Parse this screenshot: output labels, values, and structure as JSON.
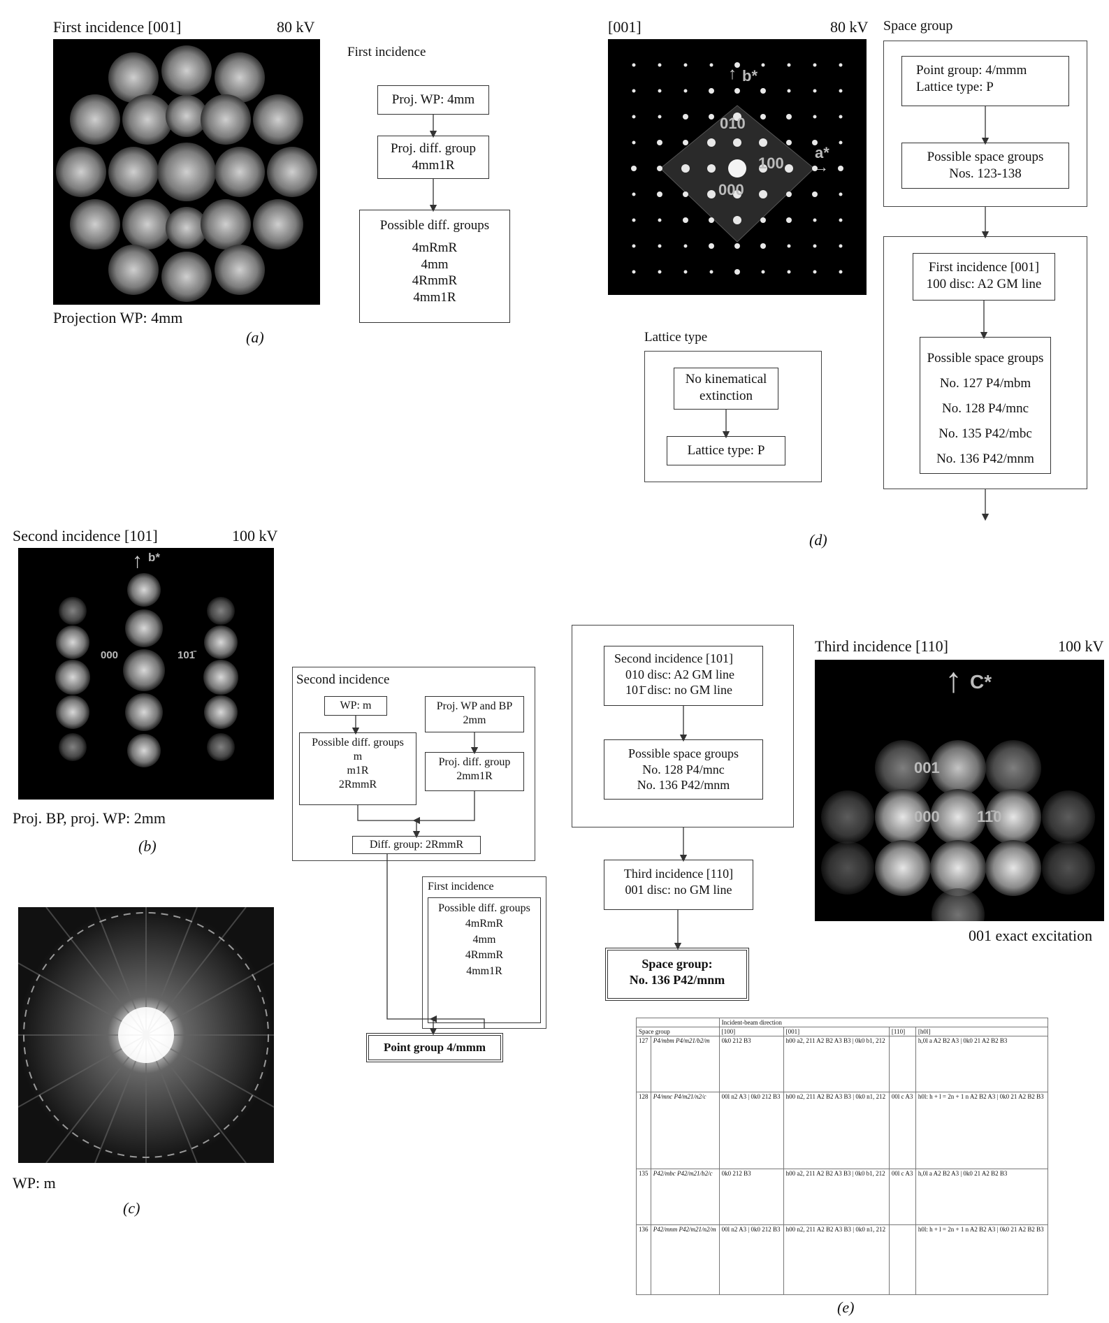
{
  "panel_a": {
    "title": "First incidence [001]",
    "voltage": "80 kV",
    "caption": "Projection WP: 4mm",
    "label": "(a)",
    "flow_title": "First incidence",
    "box1": "Proj. WP: 4mm",
    "box2_line1": "Proj. diff. group",
    "box2_line2": "4mm1R",
    "box3_title": "Possible diff. groups",
    "box3_items": [
      "4mRmR",
      "4mm",
      "4RmmR",
      "4mm1R"
    ]
  },
  "panel_b": {
    "title": "Second incidence [101]",
    "voltage": "100 kV",
    "caption": "Proj. BP, proj. WP: 2mm",
    "label": "(b)",
    "spot_b": "b*",
    "spot_000": "000",
    "spot_101": "101̄",
    "flow_title": "Second incidence",
    "wp_box": "WP: m",
    "possible_title": "Possible diff. groups",
    "possible_items": [
      "m",
      "m1R",
      "2RmmR"
    ],
    "proj_box_line1": "Proj. WP and BP",
    "proj_box_line2": "2mm",
    "projdiff_line1": "Proj. diff. group",
    "projdiff_line2": "2mm1R",
    "diffgroup": "Diff. group: 2RmmR",
    "first_title": "First incidence",
    "first_possible_title": "Possible diff. groups",
    "first_items": [
      "4mRmR",
      "4mm",
      "4RmmR",
      "4mm1R"
    ],
    "point_group": "Point group 4/mmm"
  },
  "panel_c": {
    "caption": "WP: m",
    "label": "(c)"
  },
  "panel_d": {
    "title": "[001]",
    "voltage": "80 kV",
    "spot_b": "b*",
    "spot_a": "a*",
    "spot_010": "010",
    "spot_100": "100",
    "spot_000": "000",
    "space_group_title": "Space group",
    "pg_line1": "Point group: 4/mmm",
    "pg_line2": "Lattice type: P",
    "psg_line1": "Possible space groups",
    "psg_line2": "Nos. 123-138",
    "fi_line1": "First incidence [001]",
    "fi_line2": "100 disc: A2 GM line",
    "psg2_title": "Possible space groups",
    "psg2_items": [
      "No. 127 P4/mbm",
      "No. 128 P4/mnc",
      "No. 135 P42/mbc",
      "No. 136 P42/mnm"
    ],
    "lattice_title": "Lattice type",
    "nk_line1": "No kinematical",
    "nk_line2": "extinction",
    "lt_box": "Lattice type: P",
    "label": "(d)"
  },
  "panel_e": {
    "si_line1": "Second incidence [101]",
    "si_line2": "010 disc: A2 GM line",
    "si_line3": "101̄ disc: no GM line",
    "psg_title": "Possible space groups",
    "psg_items": [
      "No. 128 P4/mnc",
      "No. 136 P42/mnm"
    ],
    "ti_line1": "Third incidence [110]",
    "ti_line2": "001 disc: no GM line",
    "sg_line1": "Space group:",
    "sg_line2": "No. 136 P42/mnm",
    "third_title": "Third incidence [110]",
    "third_voltage": "100 kV",
    "spot_c": "C*",
    "spot_001": "001",
    "spot_000": "000",
    "spot_110": "11̄0",
    "third_caption": "001 exact excitation",
    "label": "(e)",
    "table": {
      "header_top": "Incident-beam direction",
      "col_sg": "Space group",
      "cols": [
        "[100]",
        "[001]",
        "[110]",
        "[h0l]"
      ],
      "rows": [
        {
          "no": "127",
          "sym": "P4/mbm P4/m21/b2/m",
          "c100": "0k0 212 B3",
          "c001": "h00 a2, 211 A2 B2 A3 B3 | 0k0 b1, 212",
          "c110": "",
          "ch0l": "h,0l a A2 B2 A3 | 0k0 21 A2 B2 B3"
        },
        {
          "no": "128",
          "sym": "P4/mnc P4/m21/n2/c",
          "c100": "00l n2 A3 | 0k0 212 B3",
          "c001": "h00 n2, 211 A2 B2 A3 B3 | 0k0 n1, 212",
          "c110": "00l c A3",
          "ch0l": "h0l: h + l = 2n + 1 n A2 B2 A3 | 0k0 21 A2 B2 B3"
        },
        {
          "no": "135",
          "sym": "P42/mbc P42/m21/b2/c",
          "c100": "0k0 212 B3",
          "c001": "h00 a2, 211 A2 B2 A3 B3 | 0k0 b1, 212",
          "c110": "00l c A3",
          "ch0l": "h,0l a A2 B2 A3 | 0k0 21 A2 B2 B3"
        },
        {
          "no": "136",
          "sym": "P42/mnm P42/m21/n2/m",
          "c100": "00l n2 A3 | 0k0 212 B3",
          "c001": "h00 n2, 211 A2 B2 A3 B3 | 0k0 n1, 212",
          "c110": "",
          "ch0l": "h0l: h + l = 2n + 1 n A2 B2 A3 | 0k0 21 A2 B2 B3"
        }
      ]
    }
  },
  "colors": {
    "pattern_bg": "#000000",
    "spot": "#e8e8e8",
    "border": "#333333"
  }
}
